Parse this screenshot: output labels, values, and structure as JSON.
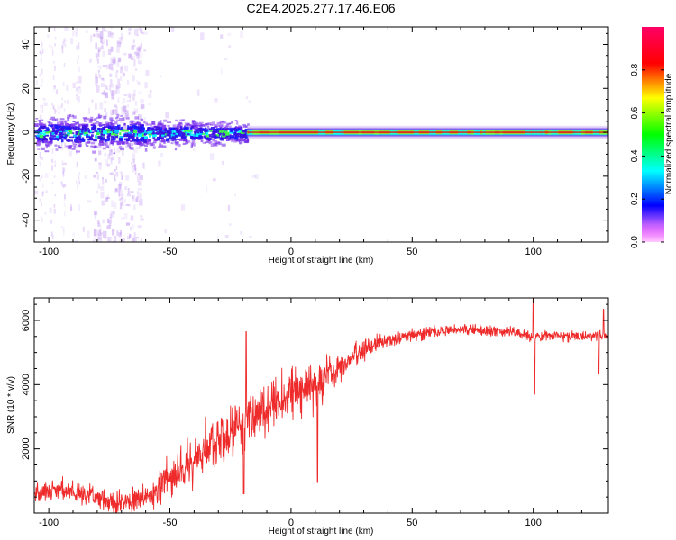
{
  "title": "C2E4.2025.277.17.46.E06",
  "colors": {
    "snr_line": "#ee2a2a",
    "ridge": "#d62020",
    "frame": "#000000"
  },
  "chart_data": [
    {
      "type": "heatmap",
      "name": "spectrogram",
      "xlabel": "Height of straight line (km)",
      "ylabel": "Frequency (Hz)",
      "xlim": [
        -106,
        131
      ],
      "ylim": [
        -50,
        48
      ],
      "xticks": [
        -100,
        -50,
        0,
        50,
        100
      ],
      "yticks": [
        -40,
        -20,
        0,
        20,
        40
      ],
      "ridge": {
        "frequency": 0,
        "x_start": -18,
        "x_end": 131
      },
      "noisy_region": {
        "x_start": -106,
        "x_end": -18
      },
      "strong_interference_band": {
        "x_start": -82,
        "x_end": -62
      },
      "colorbar": {
        "label": "Normalized spectral amplitude",
        "range": [
          0,
          1
        ],
        "ticks": [
          0.0,
          0.2,
          0.4,
          0.6,
          0.8
        ],
        "tick_labels": [
          "0.0",
          "0.2",
          "0.4",
          "0.6",
          "0.8"
        ],
        "colormap": [
          "#ff00ff",
          "#0000ff",
          "#00ffff",
          "#00ff00",
          "#ffff00",
          "#ff0000",
          "#ff0066"
        ]
      }
    },
    {
      "type": "line",
      "name": "snr",
      "xlabel": "Height of straight line (km)",
      "ylabel": "SNR (10 * v/v)",
      "xlim": [
        -106,
        131
      ],
      "ylim": [
        0,
        6700
      ],
      "xticks": [
        -100,
        -50,
        0,
        50,
        100
      ],
      "yticks": [
        2000,
        4000,
        6000
      ],
      "trend": {
        "x": [
          -106,
          -98,
          -90,
          -82,
          -76,
          -70,
          -64,
          -58,
          -50,
          -44,
          -38,
          -32,
          -26,
          -20,
          -14,
          -8,
          -2,
          4,
          10,
          16,
          22,
          28,
          34,
          40,
          50,
          60,
          70,
          80,
          90,
          95,
          100,
          105,
          110,
          115,
          120,
          125,
          131
        ],
        "y": [
          600,
          750,
          650,
          500,
          350,
          320,
          400,
          550,
          1100,
          1450,
          1800,
          2100,
          2350,
          2650,
          3050,
          3500,
          3700,
          3850,
          4000,
          4300,
          4650,
          5000,
          5250,
          5400,
          5550,
          5650,
          5700,
          5700,
          5650,
          5600,
          5450,
          5550,
          5550,
          5500,
          5500,
          5550,
          5500
        ]
      },
      "noise_amplitude": {
        "x": [
          -106,
          -60,
          -40,
          -20,
          0,
          10,
          20,
          40,
          60,
          131
        ],
        "y": [
          280,
          420,
          750,
          900,
          800,
          700,
          420,
          220,
          170,
          150
        ]
      },
      "spikes": [
        {
          "x": -18.5,
          "y": 5650
        },
        {
          "x": -19.5,
          "y": 600
        },
        {
          "x": 11,
          "y": 950
        },
        {
          "x": 100,
          "y": 6700
        },
        {
          "x": 100.5,
          "y": 3700
        },
        {
          "x": 127,
          "y": 4350
        },
        {
          "x": 129,
          "y": 6350
        }
      ]
    }
  ]
}
